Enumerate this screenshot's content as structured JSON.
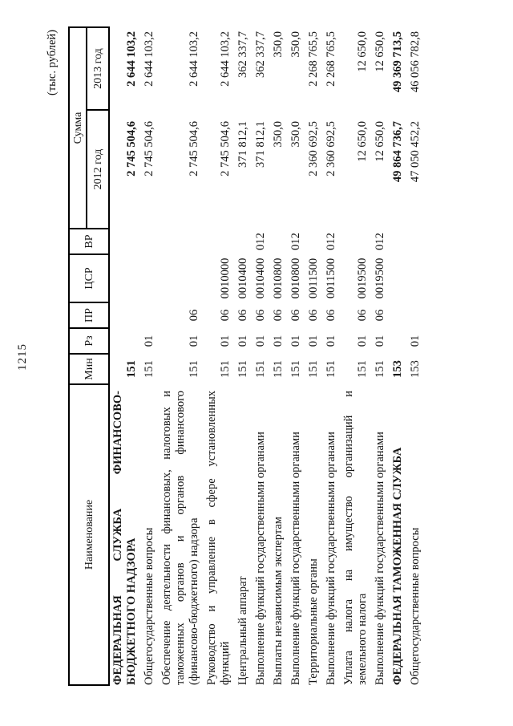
{
  "page": {
    "number": "1215",
    "units_note": "(тыс. рублей)"
  },
  "table": {
    "headers": {
      "name": "Наименование",
      "min": "Мин",
      "rz": "Рз",
      "pr": "ПР",
      "csr": "ЦСР",
      "vr": "ВР",
      "sum": "Сумма",
      "y2012": "2012 год",
      "y2013": "2013 год"
    },
    "rows": [
      {
        "name_lines": [
          "ФЕДЕРАЛЬНАЯ СЛУЖБА ФИНАНСОВО-",
          "БЮДЖЕТНОГО НАДЗОРА"
        ],
        "bold": true,
        "min": "151",
        "rz": "",
        "pr": "",
        "csr": "",
        "vr": "",
        "s2012": "2 745 504,6",
        "s2013": "2 644 103,2"
      },
      {
        "name_lines": [
          "Общегосударственные вопросы"
        ],
        "bold": false,
        "min": "151",
        "rz": "01",
        "pr": "",
        "csr": "",
        "vr": "",
        "s2012": "2 745 504,6",
        "s2013": "2 644 103,2"
      },
      {
        "name_lines": [
          "Обеспечение деятельности финансовых, налоговых и",
          "таможенных органов и органов финансового",
          "(финансово-бюджетного) надзора"
        ],
        "bold": false,
        "min": "151",
        "rz": "01",
        "pr": "06",
        "csr": "",
        "vr": "",
        "s2012": "2 745 504,6",
        "s2013": "2 644 103,2"
      },
      {
        "name_lines": [
          "Руководство и управление в сфере установленных",
          "функций"
        ],
        "bold": false,
        "min": "151",
        "rz": "01",
        "pr": "06",
        "csr": "0010000",
        "vr": "",
        "s2012": "2 745 504,6",
        "s2013": "2 644 103,2"
      },
      {
        "name_lines": [
          "Центральный аппарат"
        ],
        "bold": false,
        "min": "151",
        "rz": "01",
        "pr": "06",
        "csr": "0010400",
        "vr": "",
        "s2012": "371 812,1",
        "s2013": "362 337,7"
      },
      {
        "name_lines": [
          "Выполнение функций государственными органами"
        ],
        "bold": false,
        "min": "151",
        "rz": "01",
        "pr": "06",
        "csr": "0010400",
        "vr": "012",
        "s2012": "371 812,1",
        "s2013": "362 337,7"
      },
      {
        "name_lines": [
          "Выплаты независимым экспертам"
        ],
        "bold": false,
        "min": "151",
        "rz": "01",
        "pr": "06",
        "csr": "0010800",
        "vr": "",
        "s2012": "350,0",
        "s2013": "350,0"
      },
      {
        "name_lines": [
          "Выполнение функций государственными органами"
        ],
        "bold": false,
        "min": "151",
        "rz": "01",
        "pr": "06",
        "csr": "0010800",
        "vr": "012",
        "s2012": "350,0",
        "s2013": "350,0"
      },
      {
        "name_lines": [
          "Территориальные органы"
        ],
        "bold": false,
        "min": "151",
        "rz": "01",
        "pr": "06",
        "csr": "0011500",
        "vr": "",
        "s2012": "2 360 692,5",
        "s2013": "2 268 765,5"
      },
      {
        "name_lines": [
          "Выполнение функций государственными органами"
        ],
        "bold": false,
        "min": "151",
        "rz": "01",
        "pr": "06",
        "csr": "0011500",
        "vr": "012",
        "s2012": "2 360 692,5",
        "s2013": "2 268 765,5"
      },
      {
        "name_lines": [
          "Уплата налога на имущество организаций и",
          "земельного налога"
        ],
        "bold": false,
        "min": "151",
        "rz": "01",
        "pr": "06",
        "csr": "0019500",
        "vr": "",
        "s2012": "12 650,0",
        "s2013": "12 650,0"
      },
      {
        "name_lines": [
          "Выполнение функций государственными органами"
        ],
        "bold": false,
        "min": "151",
        "rz": "01",
        "pr": "06",
        "csr": "0019500",
        "vr": "012",
        "s2012": "12 650,0",
        "s2013": "12 650,0"
      },
      {
        "name_lines": [
          "ФЕДЕРАЛЬНАЯ ТАМОЖЕННАЯ СЛУЖБА"
        ],
        "bold": true,
        "min": "153",
        "rz": "",
        "pr": "",
        "csr": "",
        "vr": "",
        "s2012": "49 864 736,7",
        "s2013": "49 369 713,5"
      },
      {
        "name_lines": [
          "Общегосударственные вопросы"
        ],
        "bold": false,
        "min": "153",
        "rz": "01",
        "pr": "",
        "csr": "",
        "vr": "",
        "s2012": "47 050 452,2",
        "s2013": "46 056 782,8"
      }
    ]
  }
}
